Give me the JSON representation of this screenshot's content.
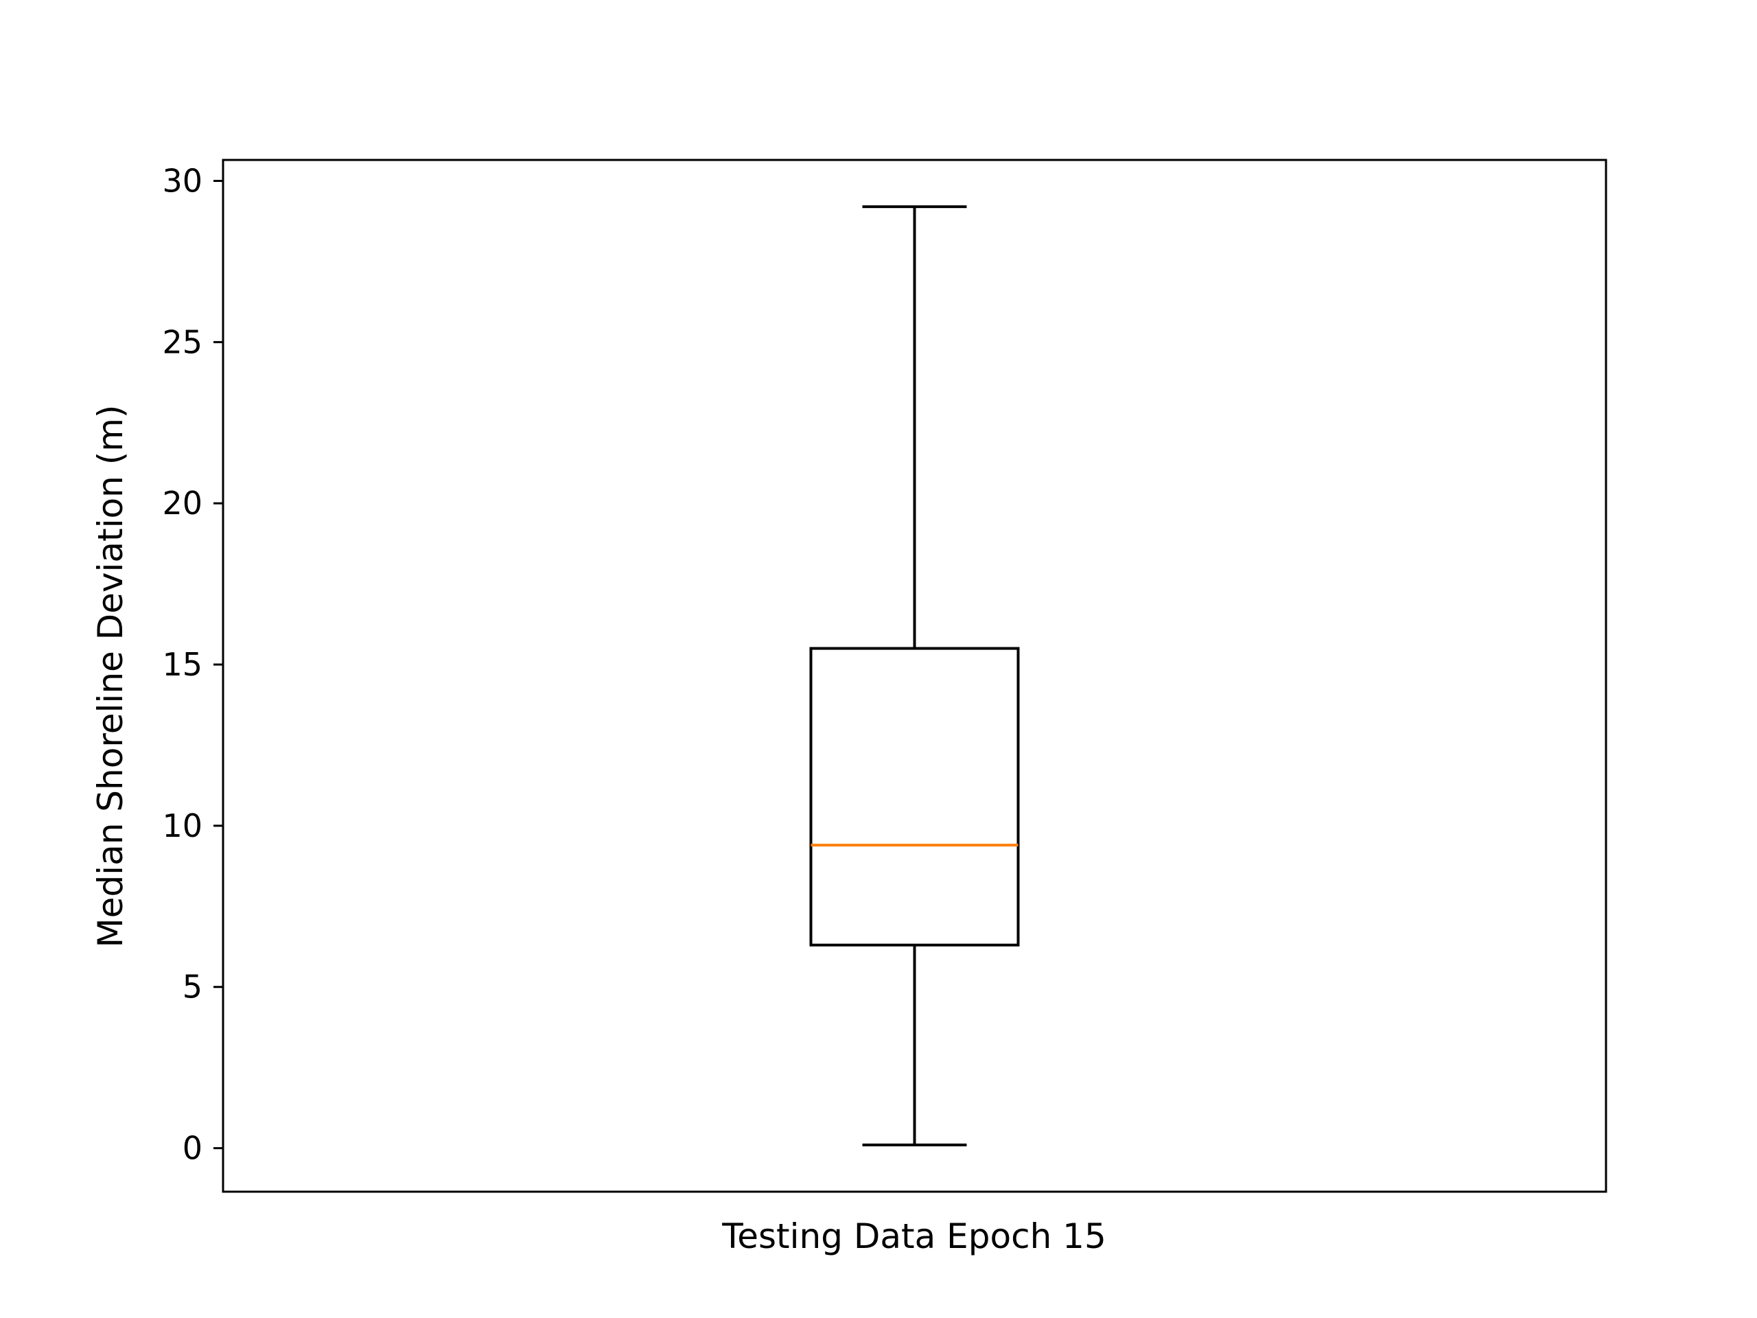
{
  "chart_data": {
    "type": "box",
    "title": "",
    "xlabel": "Testing Data Epoch 15",
    "ylabel": "Median Shoreline Deviation (m)",
    "ylim": [
      -1.35,
      30.65
    ],
    "yticks": [
      0,
      5,
      10,
      15,
      20,
      25,
      30
    ],
    "ytick_labels": [
      "0",
      "5",
      "10",
      "15",
      "20",
      "25",
      "30"
    ],
    "grid": false,
    "box": {
      "whisker_low": 0.1,
      "q1": 6.3,
      "median": 9.4,
      "q3": 15.5,
      "whisker_high": 29.2
    },
    "colors": {
      "box": "#000000",
      "median": "#ff7f0e"
    }
  }
}
